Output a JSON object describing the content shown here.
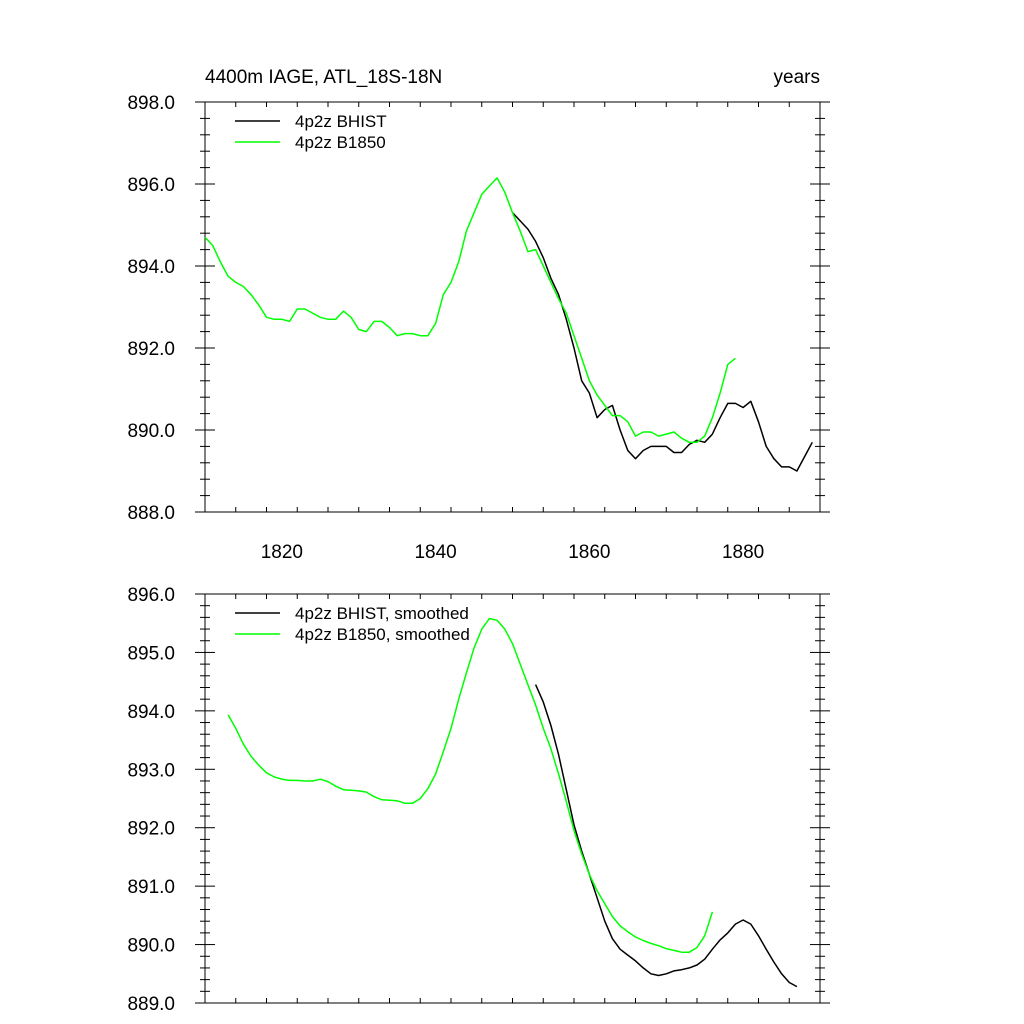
{
  "chart_data": [
    {
      "type": "line",
      "title": "4400m IAGE, ATL_18S-18N",
      "title_right": "years",
      "xlim": [
        1810,
        1890
      ],
      "ylim": [
        888,
        898
      ],
      "x_ticks": [
        1820,
        1840,
        1860,
        1880
      ],
      "x_tick_labels": [
        "1820",
        "1840",
        "1860",
        "1880"
      ],
      "y_ticks": [
        888,
        890,
        892,
        894,
        896,
        898
      ],
      "y_tick_labels": [
        "888.0",
        "890.0",
        "892.0",
        "894.0",
        "896.0",
        "898.0"
      ],
      "grid": false,
      "legend_position": "top-left",
      "series": [
        {
          "name": "4p2z BHIST",
          "color": "#000000",
          "x": [
            1850,
            1851,
            1852,
            1853,
            1854,
            1855,
            1856,
            1857,
            1858,
            1859,
            1860,
            1861,
            1862,
            1863,
            1864,
            1865,
            1866,
            1867,
            1868,
            1869,
            1870,
            1871,
            1872,
            1873,
            1874,
            1875,
            1876,
            1877,
            1878,
            1879,
            1880,
            1881,
            1882,
            1883,
            1884,
            1885,
            1886,
            1887,
            1888,
            1889
          ],
          "y": [
            895.3,
            895.1,
            894.9,
            894.6,
            894.2,
            893.7,
            893.3,
            892.7,
            892.0,
            891.2,
            890.9,
            890.3,
            890.5,
            890.6,
            890.0,
            889.5,
            889.3,
            889.5,
            889.6,
            889.6,
            889.6,
            889.45,
            889.45,
            889.65,
            889.75,
            889.7,
            889.9,
            890.3,
            890.65,
            890.65,
            890.55,
            890.7,
            890.2,
            889.6,
            889.3,
            889.1,
            889.1,
            889.0,
            889.35,
            889.7
          ]
        },
        {
          "name": "4p2z B1850",
          "color": "#00ff00",
          "x": [
            1810,
            1811,
            1812,
            1813,
            1814,
            1815,
            1816,
            1817,
            1818,
            1819,
            1820,
            1821,
            1822,
            1823,
            1824,
            1825,
            1826,
            1827,
            1828,
            1829,
            1830,
            1831,
            1832,
            1833,
            1834,
            1835,
            1836,
            1837,
            1838,
            1839,
            1840,
            1841,
            1842,
            1843,
            1844,
            1845,
            1846,
            1847,
            1848,
            1849,
            1850,
            1851,
            1852,
            1853,
            1854,
            1855,
            1856,
            1857,
            1858,
            1859,
            1860,
            1861,
            1862,
            1863,
            1864,
            1865,
            1866,
            1867,
            1868,
            1869,
            1870,
            1871,
            1872,
            1873,
            1874,
            1875,
            1876,
            1877,
            1878,
            1879
          ],
          "y": [
            894.7,
            894.5,
            894.1,
            893.75,
            893.6,
            893.5,
            893.3,
            893.05,
            892.75,
            892.7,
            892.7,
            892.65,
            892.95,
            892.95,
            892.85,
            892.75,
            892.7,
            892.7,
            892.9,
            892.75,
            892.45,
            892.4,
            892.65,
            892.65,
            892.5,
            892.3,
            892.35,
            892.35,
            892.3,
            892.3,
            892.6,
            893.3,
            893.6,
            894.1,
            894.85,
            895.3,
            895.75,
            895.95,
            896.15,
            895.8,
            895.3,
            894.85,
            894.35,
            894.4,
            894.0,
            893.6,
            893.2,
            892.85,
            892.3,
            891.75,
            891.2,
            890.85,
            890.6,
            890.35,
            890.35,
            890.2,
            889.85,
            889.95,
            889.95,
            889.85,
            889.9,
            889.95,
            889.8,
            889.7,
            889.7,
            889.85,
            890.3,
            890.9,
            891.6,
            891.75
          ]
        }
      ]
    },
    {
      "type": "line",
      "xlim": [
        1810,
        1890
      ],
      "ylim": [
        889,
        896
      ],
      "x_ticks": [
        1820,
        1840,
        1860,
        1880
      ],
      "x_tick_labels": [],
      "y_ticks": [
        889,
        890,
        891,
        892,
        893,
        894,
        895,
        896
      ],
      "y_tick_labels": [
        "889.0",
        "890.0",
        "891.0",
        "892.0",
        "893.0",
        "894.0",
        "895.0",
        "896.0"
      ],
      "grid": false,
      "legend_position": "top-left",
      "series": [
        {
          "name": "4p2z BHIST, smoothed",
          "color": "#000000",
          "x": [
            1853,
            1854,
            1855,
            1856,
            1857,
            1858,
            1859,
            1860,
            1861,
            1862,
            1863,
            1864,
            1865,
            1866,
            1867,
            1868,
            1869,
            1870,
            1871,
            1872,
            1873,
            1874,
            1875,
            1876,
            1877,
            1878,
            1879,
            1880,
            1881,
            1882,
            1883,
            1884,
            1885,
            1886,
            1887
          ],
          "y": [
            894.45,
            894.15,
            893.75,
            893.25,
            892.65,
            892.05,
            891.6,
            891.2,
            890.8,
            890.4,
            890.1,
            889.92,
            889.82,
            889.72,
            889.6,
            889.5,
            889.47,
            889.5,
            889.55,
            889.57,
            889.6,
            889.65,
            889.75,
            889.92,
            890.08,
            890.2,
            890.35,
            890.42,
            890.35,
            890.15,
            889.92,
            889.7,
            889.5,
            889.35,
            889.28
          ]
        },
        {
          "name": "4p2z B1850, smoothed",
          "color": "#00ff00",
          "x": [
            1813,
            1814,
            1815,
            1816,
            1817,
            1818,
            1819,
            1820,
            1821,
            1822,
            1823,
            1824,
            1825,
            1826,
            1827,
            1828,
            1829,
            1830,
            1831,
            1832,
            1833,
            1834,
            1835,
            1836,
            1837,
            1838,
            1839,
            1840,
            1841,
            1842,
            1843,
            1844,
            1845,
            1846,
            1847,
            1848,
            1849,
            1850,
            1851,
            1852,
            1853,
            1854,
            1855,
            1856,
            1857,
            1858,
            1859,
            1860,
            1861,
            1862,
            1863,
            1864,
            1865,
            1866,
            1867,
            1868,
            1869,
            1870,
            1871,
            1872,
            1873,
            1874,
            1875,
            1876
          ],
          "y": [
            893.93,
            893.7,
            893.43,
            893.22,
            893.07,
            892.94,
            892.87,
            892.83,
            892.81,
            892.81,
            892.8,
            892.8,
            892.83,
            892.79,
            892.71,
            892.65,
            892.64,
            892.63,
            892.61,
            892.53,
            892.48,
            892.47,
            892.46,
            892.42,
            892.42,
            892.5,
            892.67,
            892.92,
            893.3,
            893.7,
            894.2,
            894.65,
            895.08,
            895.4,
            895.58,
            895.55,
            895.4,
            895.15,
            894.8,
            894.45,
            894.1,
            893.7,
            893.35,
            892.92,
            892.45,
            891.95,
            891.55,
            891.2,
            890.92,
            890.7,
            890.48,
            890.32,
            890.22,
            890.13,
            890.07,
            890.02,
            889.98,
            889.93,
            889.9,
            889.87,
            889.87,
            889.95,
            890.15,
            890.56
          ]
        }
      ]
    }
  ]
}
